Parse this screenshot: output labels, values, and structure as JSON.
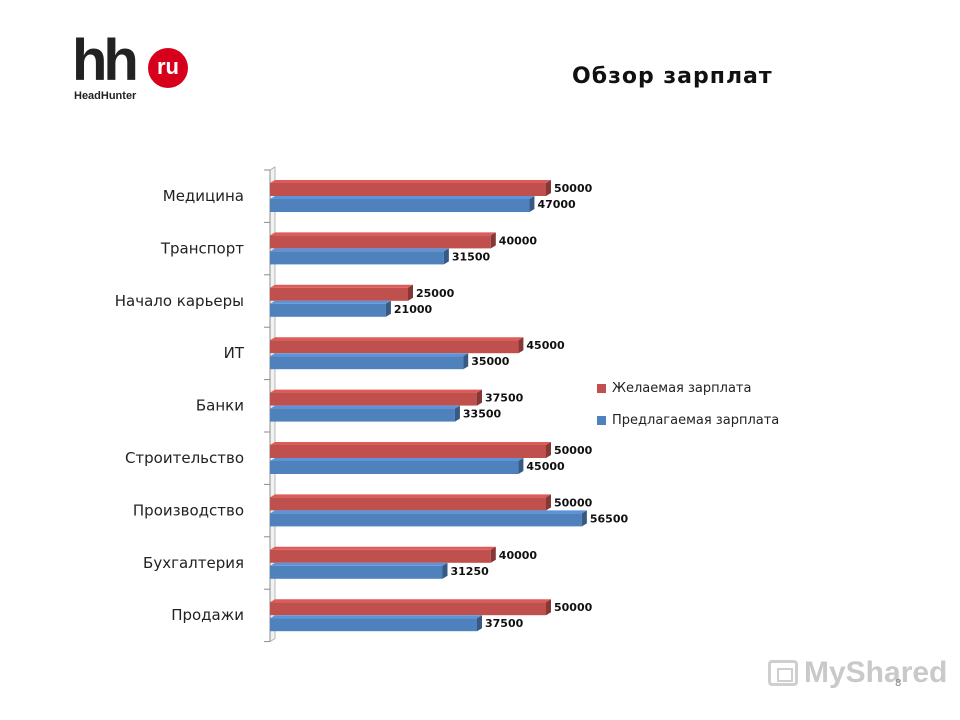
{
  "logo": {
    "mark": "hh",
    "badge": "ru",
    "subtitle": "HeadHunter"
  },
  "title": "Обзор зарплат",
  "page_number": "8",
  "watermark": "MyShared",
  "colors": {
    "desired": "#c0504d",
    "offered": "#4f81bd",
    "brand_red": "#d6001c"
  },
  "chart_data": {
    "type": "bar",
    "orientation": "horizontal",
    "style": "3d",
    "categories": [
      "Медицина",
      "Транспорт",
      "Начало карьеры",
      "ИТ",
      "Банки",
      "Строительство",
      "Производство",
      "Бухгалтерия",
      "Продажи"
    ],
    "series": [
      {
        "name": "Желаемая зарплата",
        "color": "#c0504d",
        "values": [
          50000,
          40000,
          25000,
          45000,
          37500,
          50000,
          50000,
          40000,
          50000
        ]
      },
      {
        "name": "Предлагаемая зарплата",
        "color": "#4f81bd",
        "values": [
          47000,
          31500,
          21000,
          35000,
          33500,
          45000,
          56500,
          31250,
          37500
        ]
      }
    ],
    "legend_position": "right",
    "data_labels": true,
    "xlim": [
      0,
      60000
    ]
  }
}
